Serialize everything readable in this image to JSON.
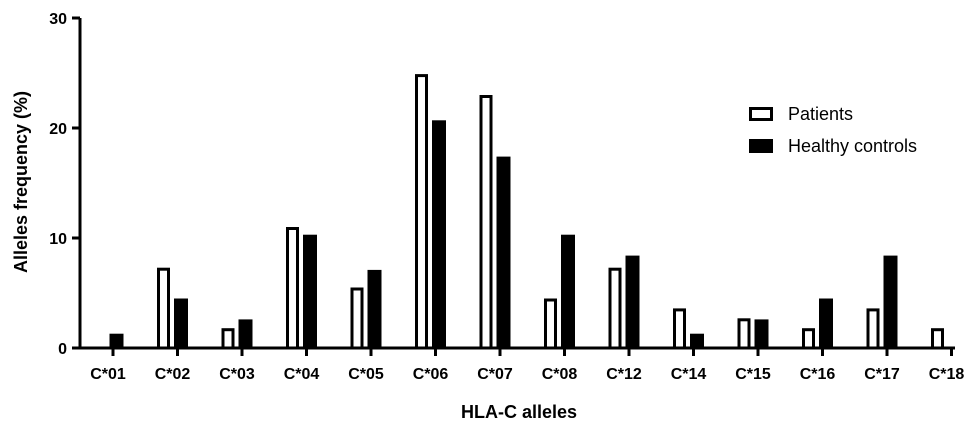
{
  "chart_data": {
    "type": "bar",
    "title": "",
    "xlabel": "HLA-C alleles",
    "ylabel": "Alleles frequency (%)",
    "ylim": [
      0,
      30
    ],
    "yticks": [
      0,
      10,
      20,
      30
    ],
    "categories": [
      "C*01",
      "C*02",
      "C*03",
      "C*04",
      "C*05",
      "C*06",
      "C*07",
      "C*08",
      "C*12",
      "C*14",
      "C*15",
      "C*16",
      "C*17",
      "C*18"
    ],
    "series": [
      {
        "name": "Patients",
        "style": "outline",
        "color": "#000000",
        "values": [
          0,
          7.3,
          1.8,
          11.0,
          5.5,
          24.9,
          23.0,
          4.5,
          7.3,
          3.6,
          2.7,
          1.8,
          3.6,
          1.8
        ]
      },
      {
        "name": "Healthy controls",
        "style": "filled",
        "color": "#000000",
        "values": [
          1.3,
          4.5,
          2.6,
          10.3,
          7.1,
          20.7,
          17.4,
          10.3,
          8.4,
          1.3,
          2.6,
          4.5,
          8.4,
          0
        ]
      }
    ],
    "grid": false,
    "legend_position": "top-right"
  }
}
